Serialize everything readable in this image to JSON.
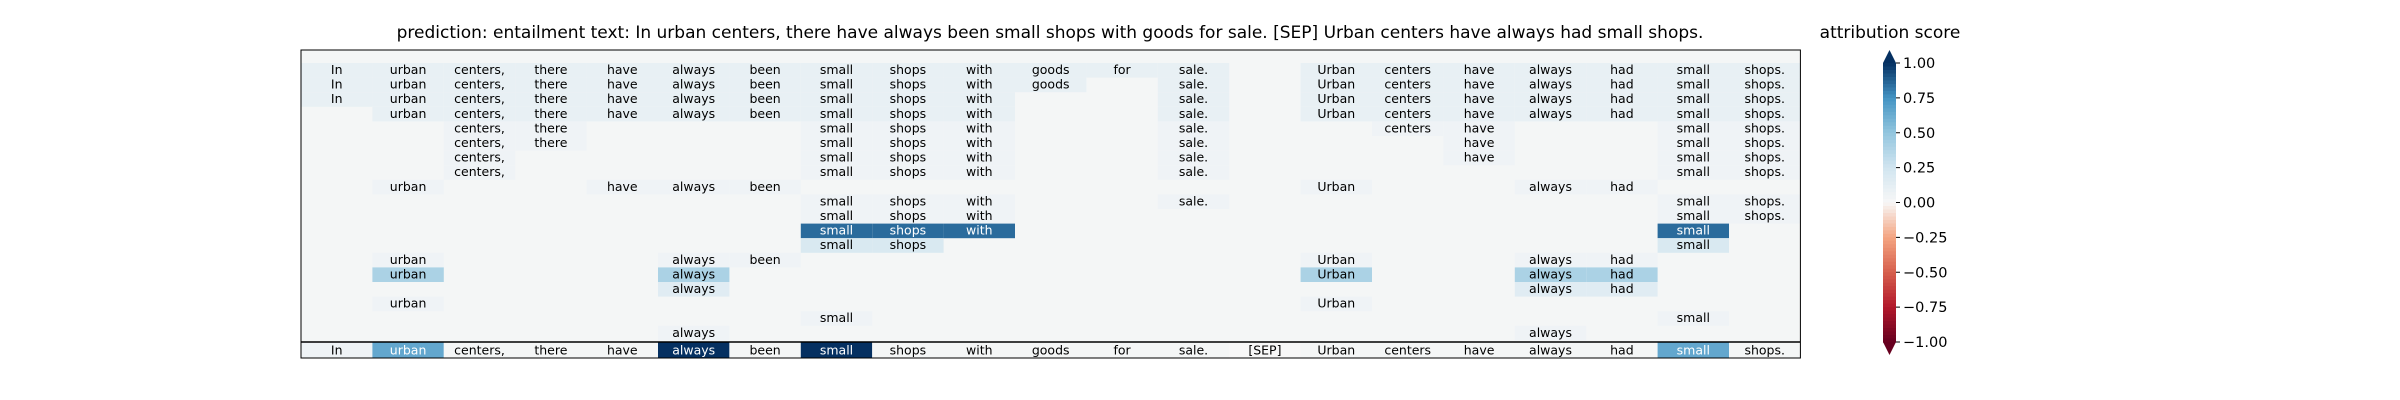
{
  "chart_data": {
    "type": "heatmap",
    "title": "prediction:  entailment     text:  In urban centers, there have always been small shops with goods for sale. [SEP] Urban centers have always had small shops.",
    "tokens": [
      "In",
      "urban",
      "centers,",
      "there",
      "have",
      "always",
      "been",
      "small",
      "shops",
      "with",
      "goods",
      "for",
      "sale.",
      "[SEP]",
      "Urban",
      "centers",
      "have",
      "always",
      "had",
      "small",
      "shops."
    ],
    "final_row_scores": [
      0.05,
      0.65,
      0.02,
      0.02,
      0.02,
      1.0,
      0.02,
      1.0,
      0.02,
      0.02,
      0.02,
      0.02,
      0.02,
      0.0,
      0.02,
      0.02,
      0.02,
      0.02,
      0.02,
      0.65,
      0.02
    ],
    "rows": [
      {
        "cells": [
          {
            "token": 0,
            "score": 0.1
          },
          {
            "token": 1,
            "score": 0.1
          },
          {
            "token": 2,
            "score": 0.1
          },
          {
            "token": 3,
            "score": 0.1
          },
          {
            "token": 4,
            "score": 0.1
          },
          {
            "token": 5,
            "score": 0.1
          },
          {
            "token": 6,
            "score": 0.1
          },
          {
            "token": 7,
            "score": 0.1
          },
          {
            "token": 8,
            "score": 0.1
          },
          {
            "token": 9,
            "score": 0.1
          },
          {
            "token": 10,
            "score": 0.1
          },
          {
            "token": 11,
            "score": 0.1
          },
          {
            "token": 12,
            "score": 0.1
          },
          {
            "token": 14,
            "score": 0.1
          },
          {
            "token": 15,
            "score": 0.1
          },
          {
            "token": 16,
            "score": 0.1
          },
          {
            "token": 17,
            "score": 0.1
          },
          {
            "token": 18,
            "score": 0.1
          },
          {
            "token": 19,
            "score": 0.1
          },
          {
            "token": 20,
            "score": 0.1
          }
        ]
      },
      {
        "cells": [
          {
            "token": 0,
            "score": 0.1
          },
          {
            "token": 1,
            "score": 0.1
          },
          {
            "token": 2,
            "score": 0.1
          },
          {
            "token": 3,
            "score": 0.1
          },
          {
            "token": 4,
            "score": 0.1
          },
          {
            "token": 5,
            "score": 0.1
          },
          {
            "token": 6,
            "score": 0.1
          },
          {
            "token": 7,
            "score": 0.1
          },
          {
            "token": 8,
            "score": 0.1
          },
          {
            "token": 9,
            "score": 0.1
          },
          {
            "token": 10,
            "score": 0.1
          },
          {
            "token": 12,
            "score": 0.1
          },
          {
            "token": 14,
            "score": 0.1
          },
          {
            "token": 15,
            "score": 0.1
          },
          {
            "token": 16,
            "score": 0.1
          },
          {
            "token": 17,
            "score": 0.1
          },
          {
            "token": 18,
            "score": 0.1
          },
          {
            "token": 19,
            "score": 0.1
          },
          {
            "token": 20,
            "score": 0.1
          }
        ]
      },
      {
        "cells": [
          {
            "token": 0,
            "score": 0.1
          },
          {
            "token": 1,
            "score": 0.1
          },
          {
            "token": 2,
            "score": 0.1
          },
          {
            "token": 3,
            "score": 0.1
          },
          {
            "token": 4,
            "score": 0.1
          },
          {
            "token": 5,
            "score": 0.1
          },
          {
            "token": 6,
            "score": 0.1
          },
          {
            "token": 7,
            "score": 0.1
          },
          {
            "token": 8,
            "score": 0.1
          },
          {
            "token": 9,
            "score": 0.1
          },
          {
            "token": 12,
            "score": 0.1
          },
          {
            "token": 14,
            "score": 0.1
          },
          {
            "token": 15,
            "score": 0.1
          },
          {
            "token": 16,
            "score": 0.1
          },
          {
            "token": 17,
            "score": 0.1
          },
          {
            "token": 18,
            "score": 0.1
          },
          {
            "token": 19,
            "score": 0.1
          },
          {
            "token": 20,
            "score": 0.1
          }
        ]
      },
      {
        "cells": [
          {
            "token": 1,
            "score": 0.1
          },
          {
            "token": 2,
            "score": 0.1
          },
          {
            "token": 3,
            "score": 0.1
          },
          {
            "token": 4,
            "score": 0.1
          },
          {
            "token": 5,
            "score": 0.1
          },
          {
            "token": 6,
            "score": 0.1
          },
          {
            "token": 7,
            "score": 0.1
          },
          {
            "token": 8,
            "score": 0.1
          },
          {
            "token": 9,
            "score": 0.1
          },
          {
            "token": 12,
            "score": 0.1
          },
          {
            "token": 14,
            "score": 0.1
          },
          {
            "token": 15,
            "score": 0.1
          },
          {
            "token": 16,
            "score": 0.1
          },
          {
            "token": 17,
            "score": 0.1
          },
          {
            "token": 18,
            "score": 0.1
          },
          {
            "token": 19,
            "score": 0.1
          },
          {
            "token": 20,
            "score": 0.1
          }
        ]
      },
      {
        "cells": [
          {
            "token": 2,
            "score": 0.05
          },
          {
            "token": 3,
            "score": 0.05
          },
          {
            "token": 7,
            "score": 0.05
          },
          {
            "token": 8,
            "score": 0.05
          },
          {
            "token": 9,
            "score": 0.05
          },
          {
            "token": 12,
            "score": 0.05
          },
          {
            "token": 15,
            "score": 0.05
          },
          {
            "token": 16,
            "score": 0.05
          },
          {
            "token": 19,
            "score": 0.05
          },
          {
            "token": 20,
            "score": 0.05
          }
        ]
      },
      {
        "cells": [
          {
            "token": 2,
            "score": 0.05
          },
          {
            "token": 3,
            "score": 0.05
          },
          {
            "token": 7,
            "score": 0.05
          },
          {
            "token": 8,
            "score": 0.05
          },
          {
            "token": 9,
            "score": 0.05
          },
          {
            "token": 12,
            "score": 0.05
          },
          {
            "token": 16,
            "score": 0.05
          },
          {
            "token": 19,
            "score": 0.05
          },
          {
            "token": 20,
            "score": 0.05
          }
        ]
      },
      {
        "cells": [
          {
            "token": 2,
            "score": 0.05
          },
          {
            "token": 7,
            "score": 0.05
          },
          {
            "token": 8,
            "score": 0.05
          },
          {
            "token": 9,
            "score": 0.05
          },
          {
            "token": 12,
            "score": 0.05
          },
          {
            "token": 16,
            "score": 0.05
          },
          {
            "token": 19,
            "score": 0.05
          },
          {
            "token": 20,
            "score": 0.05
          }
        ]
      },
      {
        "cells": [
          {
            "token": 2,
            "score": 0.05
          },
          {
            "token": 7,
            "score": 0.05
          },
          {
            "token": 8,
            "score": 0.05
          },
          {
            "token": 9,
            "score": 0.05
          },
          {
            "token": 12,
            "score": 0.05
          },
          {
            "token": 19,
            "score": 0.05
          },
          {
            "token": 20,
            "score": 0.05
          }
        ]
      },
      {
        "cells": [
          {
            "token": 1,
            "score": 0.05
          },
          {
            "token": 4,
            "score": 0.05
          },
          {
            "token": 5,
            "score": 0.05
          },
          {
            "token": 6,
            "score": 0.05
          },
          {
            "token": 14,
            "score": 0.05
          },
          {
            "token": 17,
            "score": 0.05
          },
          {
            "token": 18,
            "score": 0.05
          }
        ]
      },
      {
        "cells": [
          {
            "token": 7,
            "score": 0.05
          },
          {
            "token": 8,
            "score": 0.05
          },
          {
            "token": 9,
            "score": 0.05
          },
          {
            "token": 12,
            "score": 0.05
          },
          {
            "token": 19,
            "score": 0.05
          },
          {
            "token": 20,
            "score": 0.05
          }
        ]
      },
      {
        "cells": [
          {
            "token": 7,
            "score": 0.05
          },
          {
            "token": 8,
            "score": 0.05
          },
          {
            "token": 9,
            "score": 0.05
          },
          {
            "token": 19,
            "score": 0.05
          },
          {
            "token": 20,
            "score": 0.05
          }
        ]
      },
      {
        "cells": [
          {
            "token": 7,
            "score": 0.85
          },
          {
            "token": 8,
            "score": 0.85
          },
          {
            "token": 9,
            "score": 0.85
          },
          {
            "token": 19,
            "score": 0.85
          }
        ]
      },
      {
        "cells": [
          {
            "token": 7,
            "score": 0.2
          },
          {
            "token": 8,
            "score": 0.2
          },
          {
            "token": 19,
            "score": 0.2
          }
        ]
      },
      {
        "cells": [
          {
            "token": 1,
            "score": 0.05
          },
          {
            "token": 5,
            "score": 0.05
          },
          {
            "token": 6,
            "score": 0.05
          },
          {
            "token": 14,
            "score": 0.05
          },
          {
            "token": 17,
            "score": 0.05
          },
          {
            "token": 18,
            "score": 0.05
          }
        ]
      },
      {
        "cells": [
          {
            "token": 1,
            "score": 0.4
          },
          {
            "token": 5,
            "score": 0.4
          },
          {
            "token": 14,
            "score": 0.4
          },
          {
            "token": 17,
            "score": 0.4
          },
          {
            "token": 18,
            "score": 0.4
          }
        ]
      },
      {
        "cells": [
          {
            "token": 5,
            "score": 0.15
          },
          {
            "token": 17,
            "score": 0.15
          },
          {
            "token": 18,
            "score": 0.15
          }
        ]
      },
      {
        "cells": [
          {
            "token": 1,
            "score": 0.05
          },
          {
            "token": 14,
            "score": 0.05
          }
        ]
      },
      {
        "cells": [
          {
            "token": 7,
            "score": 0.05
          },
          {
            "token": 19,
            "score": 0.05
          }
        ]
      },
      {
        "cells": [
          {
            "token": 5,
            "score": 0.05
          },
          {
            "token": 17,
            "score": 0.05
          }
        ]
      }
    ],
    "colorbar": {
      "label": "attribution score",
      "range": [
        -1.0,
        1.0
      ],
      "ticks": [
        "1.00",
        "0.75",
        "0.50",
        "0.25",
        "0.00",
        "−0.25",
        "−0.50",
        "−0.75",
        "−1.00"
      ],
      "tick_values": [
        1.0,
        0.75,
        0.5,
        0.25,
        0.0,
        -0.25,
        -0.5,
        -0.75,
        -1.0
      ],
      "colormap": "RdBu"
    },
    "background_color": "#f4f6f6",
    "grid": false,
    "legend": "right"
  }
}
